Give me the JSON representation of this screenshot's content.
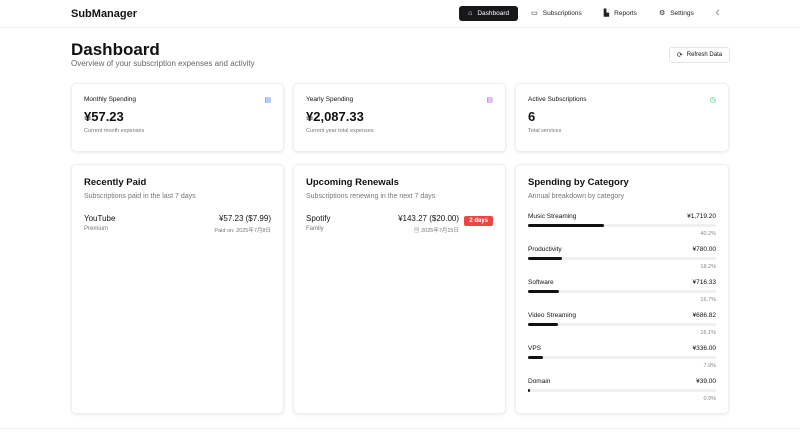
{
  "header": {
    "brand": "SubManager",
    "nav": [
      {
        "label": "Dashboard",
        "icon": "home-icon"
      },
      {
        "label": "Subscriptions",
        "icon": "credit-card-icon"
      },
      {
        "label": "Reports",
        "icon": "bar-chart-icon"
      },
      {
        "label": "Settings",
        "icon": "gear-icon"
      }
    ],
    "theme_icon": "moon-icon"
  },
  "page": {
    "title": "Dashboard",
    "subtitle": "Overview of your subscription expenses and activity",
    "refresh_label": "Refresh Data"
  },
  "stats": [
    {
      "label": "Monthly Spending",
      "value": "¥57.23",
      "note": "Current month expenses",
      "icon": "calendar-icon",
      "color": "#3b82f6"
    },
    {
      "label": "Yearly Spending",
      "value": "¥2,087.33",
      "note": "Current year total expenses",
      "icon": "calendar-icon",
      "color": "#a855f7"
    },
    {
      "label": "Active Subscriptions",
      "value": "6",
      "note": "Total services",
      "icon": "clock-icon",
      "color": "#22c55e"
    }
  ],
  "recently_paid": {
    "title": "Recently Paid",
    "desc": "Subscriptions paid in the last 7 days",
    "items": [
      {
        "name": "YouTube",
        "plan": "Premium",
        "amount": "¥57.23 ($7.99)",
        "date": "Paid on: 2025年7月8日"
      }
    ]
  },
  "upcoming": {
    "title": "Upcoming Renewals",
    "desc": "Subscriptions renewing in the next 7 days",
    "items": [
      {
        "name": "Spotify",
        "plan": "Family",
        "amount": "¥143.27 ($20.00)",
        "date": "2025年7月15日",
        "badge": "2 days"
      }
    ]
  },
  "categories": {
    "title": "Spending by Category",
    "desc": "Annual breakdown by category",
    "items": [
      {
        "name": "Music Streaming",
        "amount": "¥1,719.20",
        "percent": "40.2%",
        "value": 40.2
      },
      {
        "name": "Productivity",
        "amount": "¥780.00",
        "percent": "18.2%",
        "value": 18.2
      },
      {
        "name": "Software",
        "amount": "¥716.33",
        "percent": "16.7%",
        "value": 16.7
      },
      {
        "name": "Video Streaming",
        "amount": "¥686.82",
        "percent": "16.1%",
        "value": 16.1
      },
      {
        "name": "VPS",
        "amount": "¥336.00",
        "percent": "7.9%",
        "value": 7.9
      },
      {
        "name": "Domain",
        "amount": "¥39.00",
        "percent": "0.9%",
        "value": 0.9
      }
    ]
  }
}
